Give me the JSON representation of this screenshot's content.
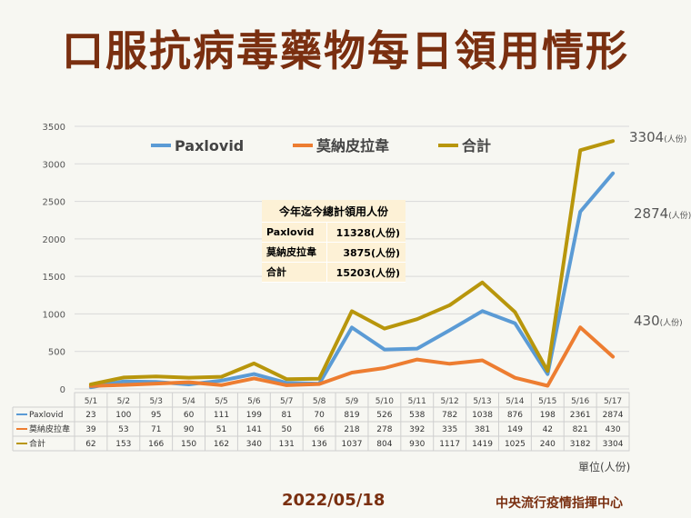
{
  "title": "口服抗病毒藥物每日領用情形",
  "unit_note": "單位(人份)",
  "date_footer": "2022/05/18",
  "org_footer": "中央流行疫情指揮中心",
  "summary": {
    "title": "今年迄今總計領用人份",
    "rows": [
      {
        "label": "Paxlovid",
        "value": "11328(人份)"
      },
      {
        "label": "莫納皮拉韋",
        "value": "3875(人份)"
      },
      {
        "label": "合計",
        "value": "15203(人份)"
      }
    ]
  },
  "chart_data": {
    "type": "line",
    "categories": [
      "5/1",
      "5/2",
      "5/3",
      "5/4",
      "5/5",
      "5/6",
      "5/7",
      "5/8",
      "5/9",
      "5/10",
      "5/11",
      "5/12",
      "5/13",
      "5/14",
      "5/15",
      "5/16",
      "5/17"
    ],
    "ylim": [
      0,
      3500
    ],
    "yticks": [
      0,
      500,
      1000,
      1500,
      2000,
      2500,
      3000,
      3500
    ],
    "grid": true,
    "legend_position": "top",
    "series": [
      {
        "name": "Paxlovid",
        "color": "#5b9bd5",
        "values": [
          23,
          100,
          95,
          60,
          111,
          199,
          81,
          70,
          819,
          526,
          538,
          782,
          1038,
          876,
          198,
          2361,
          2874
        ],
        "end_label_value": "2874",
        "end_label_unit": "(人份)"
      },
      {
        "name": "莫納皮拉韋",
        "color": "#ed7d31",
        "values": [
          39,
          53,
          71,
          90,
          51,
          141,
          50,
          66,
          218,
          278,
          392,
          335,
          381,
          149,
          42,
          821,
          430
        ],
        "end_label_value": "430",
        "end_label_unit": "(人份)"
      },
      {
        "name": "合計",
        "color": "#b8960c",
        "values": [
          62,
          153,
          166,
          150,
          162,
          340,
          131,
          136,
          1037,
          804,
          930,
          1117,
          1419,
          1025,
          240,
          3182,
          3304
        ],
        "end_label_value": "3304",
        "end_label_unit": "(人份)"
      }
    ]
  }
}
